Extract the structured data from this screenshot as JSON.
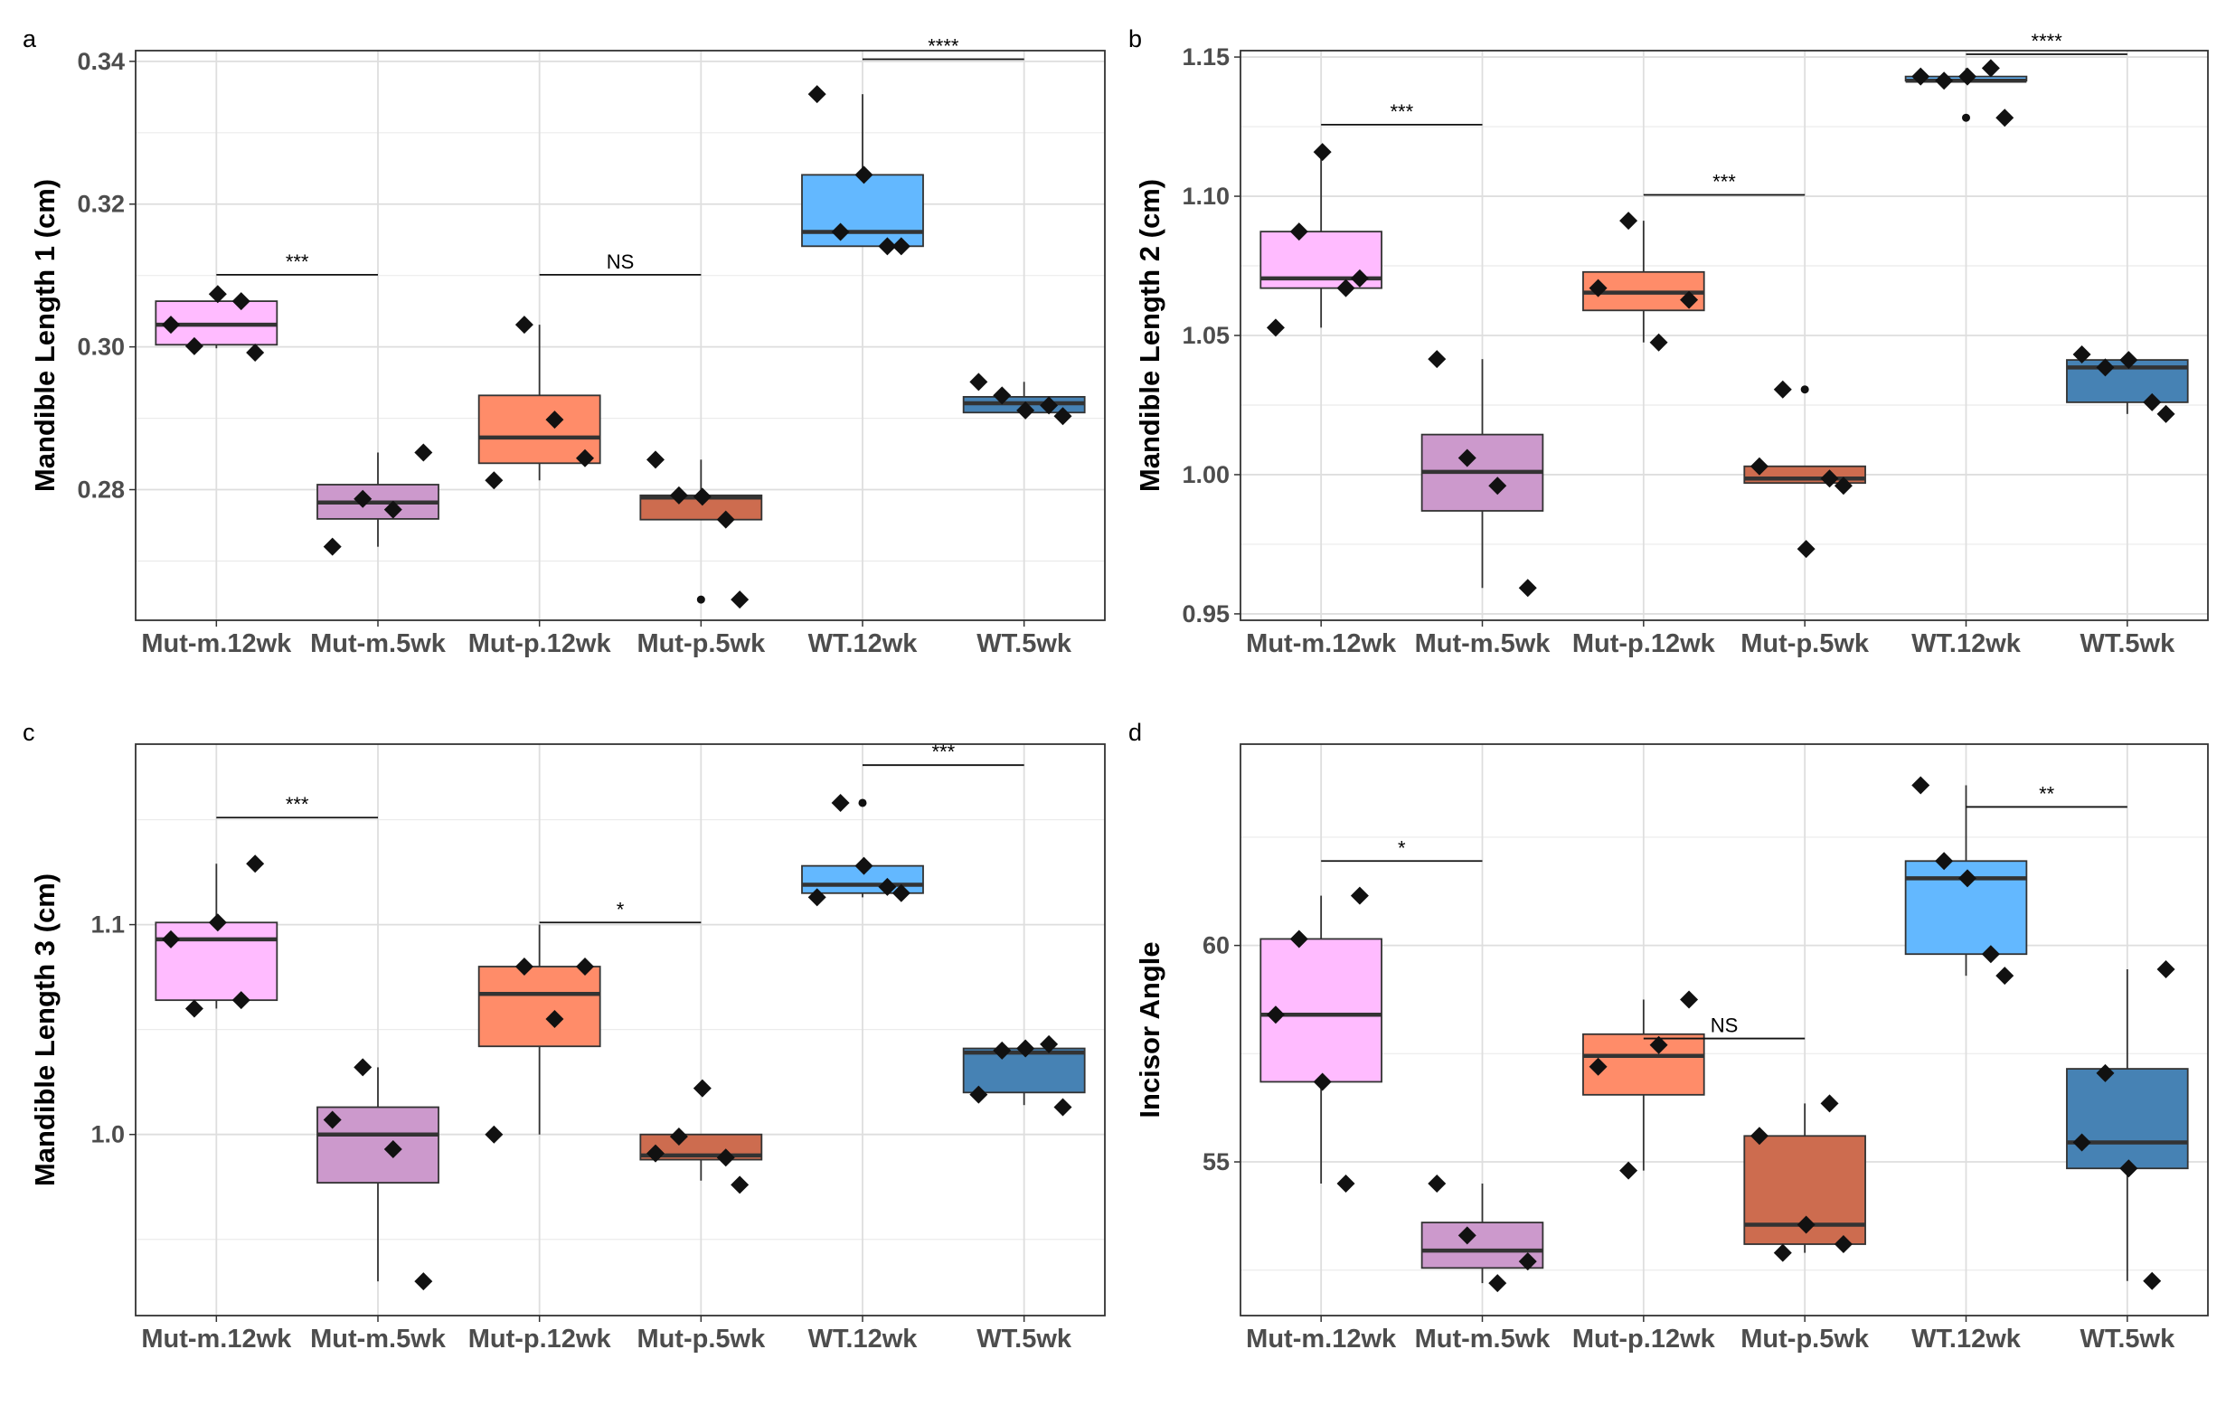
{
  "chart_data": [
    {
      "panel": "a",
      "type": "box",
      "ylabel": "Mandible Length 1 (cm)",
      "xlabel": "",
      "ylim": [
        0.2617,
        0.3415
      ],
      "yticks": [
        0.28,
        0.3,
        0.32,
        0.34
      ],
      "yticklabels": [
        "0.28",
        "0.30",
        "0.32",
        "0.34"
      ],
      "categories": [
        "Mut-m.12wk",
        "Mut-m.5wk",
        "Mut-p.12wk",
        "Mut-p.5wk",
        "WT.12wk",
        "WT.5wk"
      ],
      "colors": [
        "#ffbbff",
        "#cc99cc",
        "#ff8c69",
        "#cd6c4f",
        "#63b8ff",
        "#4682b4"
      ],
      "boxes": [
        {
          "q1": 0.3003,
          "median": 0.3031,
          "q3": 0.3064,
          "lo": 0.2998,
          "hi": 0.3074
        },
        {
          "q1": 0.2759,
          "median": 0.2782,
          "q3": 0.2807,
          "lo": 0.272,
          "hi": 0.2852
        },
        {
          "q1": 0.2837,
          "median": 0.2873,
          "q3": 0.2932,
          "lo": 0.2813,
          "hi": 0.3031
        },
        {
          "q1": 0.2758,
          "median": 0.2789,
          "q3": 0.2792,
          "lo": 0.2758,
          "hi": 0.2842
        },
        {
          "q1": 0.3141,
          "median": 0.3161,
          "q3": 0.3241,
          "lo": 0.3141,
          "hi": 0.3354
        },
        {
          "q1": 0.2908,
          "median": 0.2921,
          "q3": 0.293,
          "lo": 0.2903,
          "hi": 0.2951
        }
      ],
      "outliers": [
        [],
        [],
        [],
        [
          0.2646
        ],
        [],
        []
      ],
      "points": [
        [
          0.3031,
          0.3001,
          0.3074,
          0.3064,
          0.2992
        ],
        [
          0.272,
          0.2787,
          0.2772,
          0.2852
        ],
        [
          0.2813,
          0.3031,
          0.2898,
          0.2844
        ],
        [
          0.2842,
          0.2792,
          0.279,
          0.2758,
          0.2646
        ],
        [
          0.3354,
          0.3161,
          0.3241,
          0.3141,
          0.3141
        ],
        [
          0.2951,
          0.2932,
          0.2911,
          0.2918,
          0.2903
        ]
      ],
      "significance": [
        {
          "from": 0,
          "to": 1,
          "y": 0.3101,
          "label": "***"
        },
        {
          "from": 2,
          "to": 3,
          "y": 0.3101,
          "label": "NS"
        },
        {
          "from": 4,
          "to": 5,
          "y": 0.3403,
          "label": "****"
        }
      ]
    },
    {
      "panel": "b",
      "type": "box",
      "ylabel": "Mandible Length 2 (cm)",
      "xlabel": "",
      "ylim": [
        0.9477,
        1.1523
      ],
      "yticks": [
        0.95,
        1.0,
        1.05,
        1.1,
        1.15
      ],
      "yticklabels": [
        "0.95",
        "1.00",
        "1.05",
        "1.10",
        "1.15"
      ],
      "categories": [
        "Mut-m.12wk",
        "Mut-m.5wk",
        "Mut-p.12wk",
        "Mut-p.5wk",
        "WT.12wk",
        "WT.5wk"
      ],
      "colors": [
        "#ffbbff",
        "#cc99cc",
        "#ff8c69",
        "#cd6c4f",
        "#63b8ff",
        "#4682b4"
      ],
      "boxes": [
        {
          "q1": 1.067,
          "median": 1.0705,
          "q3": 1.0873,
          "lo": 1.0528,
          "hi": 1.1159
        },
        {
          "q1": 0.987,
          "median": 1.001,
          "q3": 1.0144,
          "lo": 0.9593,
          "hi": 1.0415
        },
        {
          "q1": 1.059,
          "median": 1.0654,
          "q3": 1.0728,
          "lo": 1.0475,
          "hi": 1.0912
        },
        {
          "q1": 0.997,
          "median": 0.9986,
          "q3": 1.003,
          "lo": 0.997,
          "hi": 1.003
        },
        {
          "q1": 1.1415,
          "median": 1.1415,
          "q3": 1.143,
          "lo": 1.1415,
          "hi": 1.146
        },
        {
          "q1": 1.026,
          "median": 1.0385,
          "q3": 1.0412,
          "lo": 1.0218,
          "hi": 1.0432
        }
      ],
      "outliers": [
        [],
        [],
        [],
        [
          1.0306,
          0.9733
        ],
        [
          1.1282
        ],
        []
      ],
      "points": [
        [
          1.0528,
          1.0873,
          1.1159,
          1.067,
          1.0705
        ],
        [
          1.0415,
          1.006,
          0.996,
          0.9593
        ],
        [
          1.067,
          1.0912,
          1.0475,
          1.0628
        ],
        [
          1.003,
          1.0306,
          0.9733,
          0.9986,
          0.996
        ],
        [
          1.143,
          1.1415,
          1.143,
          1.146,
          1.1282
        ],
        [
          1.0432,
          1.0385,
          1.0412,
          1.026,
          1.0218
        ]
      ],
      "significance": [
        {
          "from": 0,
          "to": 1,
          "y": 1.1257,
          "label": "***"
        },
        {
          "from": 2,
          "to": 3,
          "y": 1.1005,
          "label": "***"
        },
        {
          "from": 4,
          "to": 5,
          "y": 1.151,
          "label": "****"
        }
      ]
    },
    {
      "panel": "c",
      "type": "box",
      "ylabel": "Mandible Length 3 (cm)",
      "xlabel": "",
      "ylim": [
        0.9137,
        1.186
      ],
      "yticks": [
        1.0,
        1.1
      ],
      "yticklabels": [
        "1.0",
        "1.1"
      ],
      "categories": [
        "Mut-m.12wk",
        "Mut-m.5wk",
        "Mut-p.12wk",
        "Mut-p.5wk",
        "WT.12wk",
        "WT.5wk"
      ],
      "colors": [
        "#ffbbff",
        "#cc99cc",
        "#ff8c69",
        "#cd6c4f",
        "#63b8ff",
        "#4682b4"
      ],
      "boxes": [
        {
          "q1": 1.064,
          "median": 1.093,
          "q3": 1.101,
          "lo": 1.06,
          "hi": 1.129
        },
        {
          "q1": 0.977,
          "median": 1.0,
          "q3": 1.013,
          "lo": 0.93,
          "hi": 1.032
        },
        {
          "q1": 1.042,
          "median": 1.067,
          "q3": 1.08,
          "lo": 1.0,
          "hi": 1.1
        },
        {
          "q1": 0.988,
          "median": 0.99,
          "q3": 1.0,
          "lo": 0.978,
          "hi": 1.0
        },
        {
          "q1": 1.115,
          "median": 1.119,
          "q3": 1.128,
          "lo": 1.113,
          "hi": 1.128
        },
        {
          "q1": 1.02,
          "median": 1.039,
          "q3": 1.041,
          "lo": 1.014,
          "hi": 1.043
        }
      ],
      "outliers": [
        [],
        [],
        [],
        [
          1.022
        ],
        [
          1.158
        ],
        []
      ],
      "points": [
        [
          1.093,
          1.06,
          1.101,
          1.064,
          1.129
        ],
        [
          1.007,
          1.032,
          0.993,
          0.93
        ],
        [
          1.0,
          1.08,
          1.055,
          1.08
        ],
        [
          0.991,
          0.999,
          1.022,
          0.989,
          0.976
        ],
        [
          1.113,
          1.158,
          1.128,
          1.118,
          1.115
        ],
        [
          1.019,
          1.04,
          1.041,
          1.043,
          1.013
        ]
      ],
      "significance": [
        {
          "from": 0,
          "to": 1,
          "y": 1.151,
          "label": "***"
        },
        {
          "from": 2,
          "to": 3,
          "y": 1.101,
          "label": "*"
        },
        {
          "from": 4,
          "to": 5,
          "y": 1.176,
          "label": "***"
        }
      ]
    },
    {
      "panel": "d",
      "type": "box",
      "ylabel": "Incisor Angle",
      "xlabel": "",
      "ylim": [
        51.45,
        64.65
      ],
      "yticks": [
        55,
        60
      ],
      "yticklabels": [
        "55",
        "60"
      ],
      "categories": [
        "Mut-m.12wk",
        "Mut-m.5wk",
        "Mut-p.12wk",
        "Mut-p.5wk",
        "WT.12wk",
        "WT.5wk"
      ],
      "colors": [
        "#ffbbff",
        "#cc99cc",
        "#ff8c69",
        "#cd6c4f",
        "#63b8ff",
        "#4682b4"
      ],
      "boxes": [
        {
          "q1": 56.85,
          "median": 58.4,
          "q3": 60.15,
          "lo": 54.5,
          "hi": 61.15
        },
        {
          "q1": 52.55,
          "median": 52.95,
          "q3": 53.6,
          "lo": 52.2,
          "hi": 54.5
        },
        {
          "q1": 56.55,
          "median": 57.45,
          "q3": 57.95,
          "lo": 54.8,
          "hi": 58.75
        },
        {
          "q1": 53.1,
          "median": 53.55,
          "q3": 55.6,
          "lo": 52.9,
          "hi": 56.35
        },
        {
          "q1": 59.8,
          "median": 61.55,
          "q3": 61.95,
          "lo": 59.3,
          "hi": 63.7
        },
        {
          "q1": 54.85,
          "median": 55.45,
          "q3": 57.15,
          "lo": 52.25,
          "hi": 59.45
        }
      ],
      "outliers": [
        [],
        [],
        [],
        [],
        [],
        []
      ],
      "points": [
        [
          58.4,
          60.15,
          56.85,
          54.5,
          61.15
        ],
        [
          54.5,
          53.3,
          52.2,
          52.7
        ],
        [
          57.2,
          54.8,
          57.7,
          58.75
        ],
        [
          55.6,
          52.9,
          53.55,
          56.35,
          53.1
        ],
        [
          63.7,
          61.95,
          61.55,
          59.8,
          59.3
        ],
        [
          55.45,
          57.05,
          54.85,
          52.25,
          59.45
        ]
      ],
      "significance": [
        {
          "from": 0,
          "to": 1,
          "y": 61.95,
          "label": "*"
        },
        {
          "from": 2,
          "to": 3,
          "y": 57.85,
          "label": "NS"
        },
        {
          "from": 4,
          "to": 5,
          "y": 63.2,
          "label": "**"
        }
      ]
    }
  ]
}
